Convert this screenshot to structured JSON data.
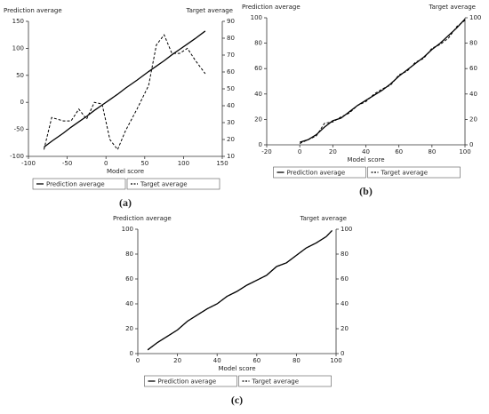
{
  "chart_data": [
    {
      "type": "line",
      "label": "(a)",
      "x_label": "Model score",
      "y_label": "Prediction average",
      "y2_label": "Target average",
      "x": [
        -80,
        -70,
        -55,
        -45,
        -35,
        -25,
        -15,
        -5,
        5,
        15,
        25,
        40,
        55,
        65,
        75,
        85,
        95,
        105,
        115,
        128
      ],
      "xlim": [
        -100,
        150
      ],
      "xticks": [
        -100,
        -50,
        0,
        50,
        100,
        150
      ],
      "ylim": [
        -100,
        150
      ],
      "yticks": [
        -100,
        -50,
        0,
        50,
        100,
        150
      ],
      "y2lim": [
        10,
        90
      ],
      "y2ticks": [
        10,
        20,
        30,
        40,
        50,
        60,
        70,
        80,
        90
      ],
      "series": [
        {
          "name": "Prediction average",
          "color": "#000000",
          "style": "solid",
          "values": [
            -83,
            -72,
            -57,
            -46,
            -36,
            -26,
            -15,
            -5,
            5,
            15,
            26,
            41,
            57,
            67,
            77,
            88,
            98,
            108,
            118,
            132
          ]
        },
        {
          "name": "Target average",
          "color": "#000000",
          "style": "dashed",
          "axis": "y2",
          "values": [
            14,
            33,
            31,
            31,
            38,
            32,
            42,
            41,
            20,
            14,
            25,
            38,
            52,
            76,
            82,
            71,
            71,
            74,
            67,
            59
          ]
        }
      ]
    },
    {
      "type": "line",
      "label": "(b)",
      "x_label": "Model score",
      "y_label": "Prediction average",
      "y2_label": "Target average",
      "x": [
        0,
        5,
        10,
        15,
        20,
        25,
        30,
        35,
        40,
        45,
        50,
        55,
        60,
        65,
        70,
        75,
        80,
        85,
        90,
        95,
        100
      ],
      "xlim": [
        -20,
        100
      ],
      "xticks": [
        -20,
        0,
        20,
        40,
        60,
        80,
        100
      ],
      "ylim": [
        0,
        100
      ],
      "yticks": [
        0,
        20,
        40,
        60,
        80,
        100
      ],
      "y2lim": [
        0,
        100
      ],
      "y2ticks": [
        0,
        20,
        40,
        60,
        80,
        100
      ],
      "series": [
        {
          "name": "Prediction average",
          "color": "#000000",
          "style": "solid",
          "values": [
            2,
            4,
            8,
            14,
            19,
            21,
            26,
            31,
            35,
            39,
            43,
            48,
            54,
            59,
            64,
            69,
            75,
            80,
            86,
            92,
            99
          ]
        },
        {
          "name": "Target average",
          "color": "#000000",
          "style": "dashed",
          "axis": "y2",
          "values": [
            1,
            4,
            7,
            17,
            18,
            22,
            25,
            31,
            34,
            40,
            44,
            47,
            55,
            58,
            65,
            68,
            76,
            79,
            84,
            93,
            98
          ]
        }
      ]
    },
    {
      "type": "line",
      "label": "(c)",
      "x_label": "Model score",
      "y_label": "Prediction average",
      "y2_label": "Target average",
      "x": [
        5,
        10,
        15,
        20,
        25,
        30,
        35,
        40,
        45,
        50,
        55,
        60,
        65,
        70,
        75,
        80,
        85,
        90,
        95,
        98
      ],
      "xlim": [
        0,
        100
      ],
      "xticks": [
        0,
        20,
        40,
        60,
        80,
        100
      ],
      "ylim": [
        0,
        100
      ],
      "yticks": [
        0,
        20,
        40,
        60,
        80,
        100
      ],
      "y2lim": [
        0,
        100
      ],
      "y2ticks": [
        0,
        20,
        40,
        60,
        80,
        100
      ],
      "series": [
        {
          "name": "Prediction average",
          "color": "#000000",
          "style": "solid",
          "values": [
            3,
            9,
            14,
            19,
            26,
            31,
            36,
            40,
            46,
            50,
            55,
            59,
            63,
            70,
            73,
            79,
            85,
            89,
            94,
            99
          ]
        },
        {
          "name": "Target average",
          "color": "#000000",
          "style": "dashed",
          "axis": "y2",
          "values": [
            3,
            9,
            14,
            19,
            26,
            31,
            36,
            40,
            46,
            50,
            55,
            59,
            63,
            70,
            73,
            79,
            85,
            89,
            94,
            99
          ]
        }
      ]
    }
  ]
}
